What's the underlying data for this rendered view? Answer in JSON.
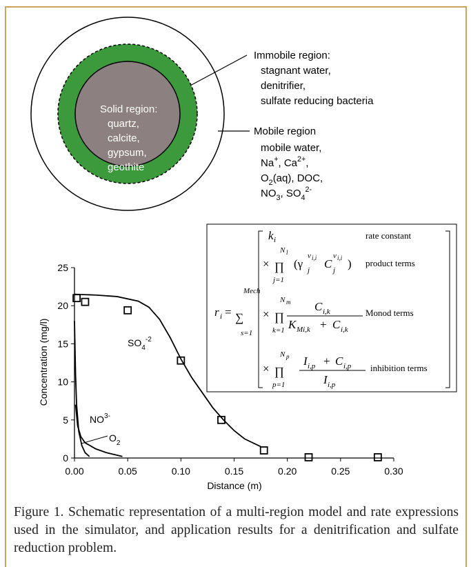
{
  "diagram": {
    "solid": {
      "title": "Solid region:",
      "items": [
        "quartz,",
        "calcite,",
        "gypsum,",
        "geothite"
      ]
    },
    "immobile": {
      "title": "Immobile region:",
      "items": [
        "stagnant water,",
        "denitrifier,",
        "sulfate reducing bacteria"
      ]
    },
    "mobile": {
      "title": "Mobile region",
      "items": [
        [
          {
            "text": "mobile water,"
          }
        ],
        [
          {
            "text": "Na"
          },
          {
            "text": "+",
            "script": "sup"
          },
          {
            "text": ", Ca"
          },
          {
            "text": "2+",
            "script": "sup"
          },
          {
            "text": ","
          }
        ],
        [
          {
            "text": "O"
          },
          {
            "text": "2",
            "script": "sub"
          },
          {
            "text": "(aq), DOC,"
          }
        ],
        [
          {
            "text": "NO"
          },
          {
            "text": "3",
            "script": "sub"
          },
          {
            "text": ", SO"
          },
          {
            "text": "4",
            "script": "sub"
          },
          {
            "text": "2-",
            "script": "sup"
          }
        ]
      ]
    }
  },
  "chart_data": {
    "type": "line",
    "x_label": "Distance (m)",
    "y_label": "Concentration (mg/l)",
    "xlim": [
      0,
      0.3
    ],
    "ylim": [
      0,
      25
    ],
    "xticks": [
      {
        "value": 0,
        "label": "0.00"
      },
      {
        "value": 0.05,
        "label": "0.05"
      },
      {
        "value": 0.1,
        "label": "0.10"
      },
      {
        "value": 0.15,
        "label": "0.15"
      },
      {
        "value": 0.2,
        "label": "0.20"
      },
      {
        "value": 0.25,
        "label": "0.25"
      },
      {
        "value": 0.3,
        "label": "0.30"
      }
    ],
    "yticks": [
      0,
      5,
      10,
      15,
      20,
      25
    ],
    "series": [
      {
        "mode": "line",
        "label": [
          {
            "text": "SO"
          },
          {
            "text": "4",
            "script": "sub"
          },
          {
            "text": "-2",
            "script": "sup"
          }
        ],
        "x": [
          0,
          0.02,
          0.04,
          0.06,
          0.07,
          0.08,
          0.09,
          0.1,
          0.11,
          0.12,
          0.13,
          0.14,
          0.15,
          0.16,
          0.175
        ],
        "values": [
          21.5,
          21.4,
          21.2,
          20.6,
          19.8,
          18.2,
          15.8,
          13.0,
          10.6,
          8.6,
          6.6,
          5.0,
          3.6,
          2.5,
          1.5
        ],
        "color": "#000000"
      },
      {
        "mode": "line",
        "label": [
          {
            "text": "NO"
          },
          {
            "text": "3-",
            "script": "sup"
          }
        ],
        "x": [
          0,
          0.001,
          0.002,
          0.004,
          0.007,
          0.01,
          0.014
        ],
        "values": [
          18,
          11,
          7,
          3.5,
          1.6,
          0.7,
          0.2
        ],
        "color": "#000000"
      },
      {
        "mode": "line",
        "label": [
          {
            "text": "O"
          },
          {
            "text": "2",
            "script": "sub"
          }
        ],
        "x": [
          0.001,
          0.003,
          0.006,
          0.01,
          0.02,
          0.03,
          0.045
        ],
        "values": [
          7,
          4.2,
          2.8,
          2.0,
          1.2,
          0.7,
          0.2
        ],
        "color": "#000000"
      },
      {
        "mode": "markers",
        "x": [
          0.002,
          0.01,
          0.05,
          0.1,
          0.138,
          0.178,
          0.22,
          0.285
        ],
        "values": [
          21,
          20.5,
          19.4,
          12.8,
          5,
          1,
          0.1,
          0.1
        ],
        "color": "#000000"
      }
    ]
  },
  "equation": {
    "lhs": "r",
    "lhs_sub": "i",
    "equals": "=",
    "sum": "∑",
    "sum_upper": "Mech",
    "sum_lower": "s=1",
    "terms": [
      {
        "symbol": "k",
        "sub": "i",
        "label": "rate constant"
      },
      {
        "times": "×",
        "product": "∏",
        "upper": "N",
        "upper_sub": "l",
        "lower": "j=1",
        "open": "(γ",
        "gamma_sub": "j",
        "gamma_sup": "v",
        "gamma_sup_sub": "i,i",
        "c": "C",
        "c_sub": "j",
        "c_sup": "v",
        "c_sup_sub": "i,i",
        "close": ")",
        "label": "product terms"
      },
      {
        "times": "×",
        "product": "∏",
        "upper": "N",
        "upper_sub": "m",
        "lower": "k=1",
        "num": "C",
        "num_sub": "i,k",
        "den": "K",
        "den_sub": "Mi,k",
        "plus": "+",
        "den2": "C",
        "den2_sub": "i,k",
        "label": "Monod terms"
      },
      {
        "times": "×",
        "product": "∏",
        "upper": "N",
        "upper_sub": "p",
        "lower": "p=1",
        "num": "I",
        "num_sub": "i,p",
        "plus": "+",
        "num2": "C",
        "num2_sub": "i,p",
        "den": "I",
        "den_sub": "i,p",
        "label": "inhibition terms"
      }
    ]
  },
  "caption": "Figure 1. Schematic representation of a multi-region model and rate expressions used in the simulator, and application results for a denitrification and sulfate reduction problem."
}
